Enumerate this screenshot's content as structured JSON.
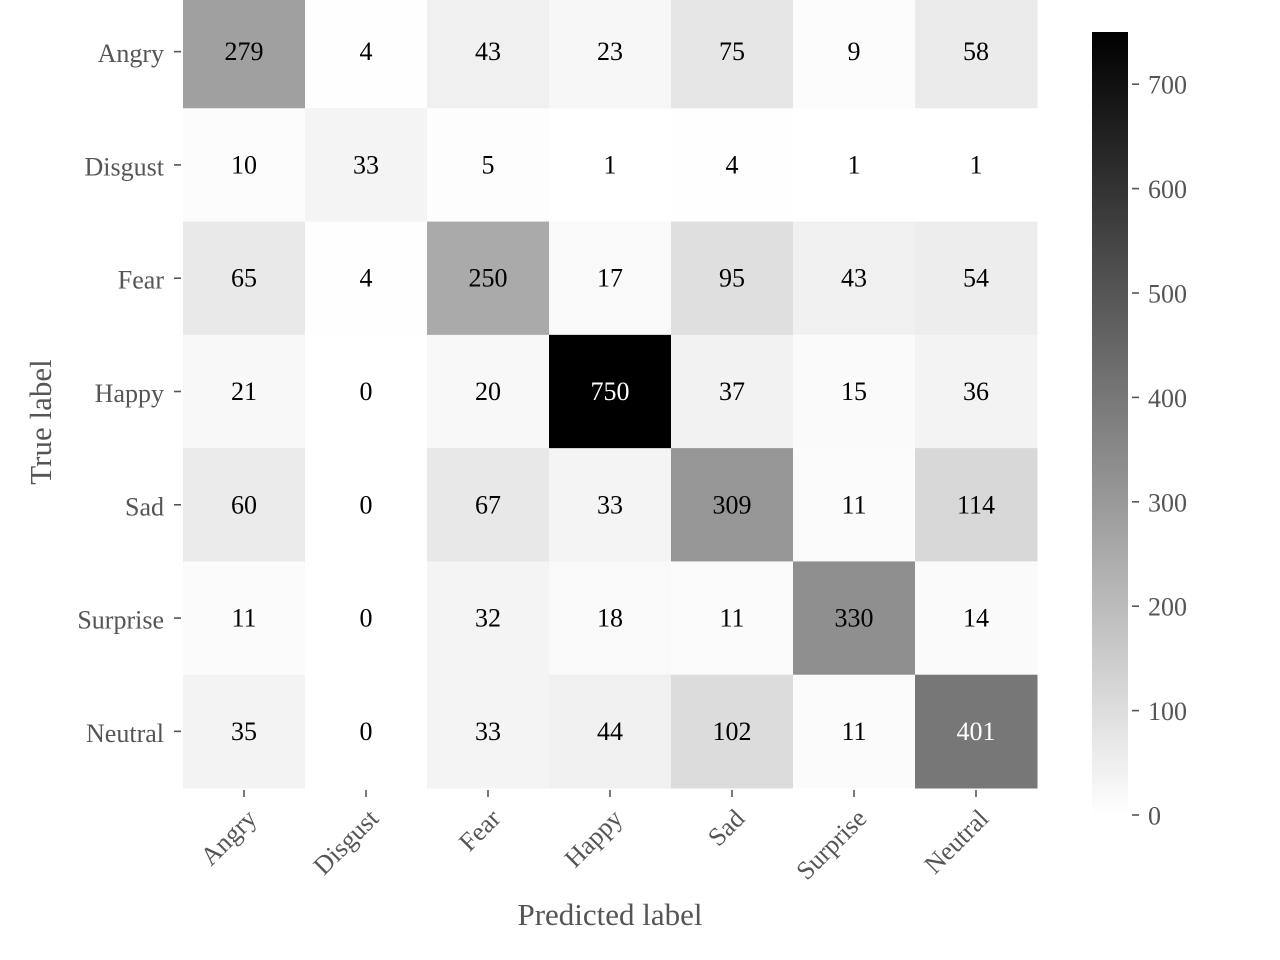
{
  "chart_data": {
    "type": "heatmap",
    "title": "",
    "xlabel": "Predicted label",
    "ylabel": "True label",
    "x_categories": [
      "Angry",
      "Disgust",
      "Fear",
      "Happy",
      "Sad",
      "Surprise",
      "Neutral"
    ],
    "y_categories": [
      "Angry",
      "Disgust",
      "Fear",
      "Happy",
      "Sad",
      "Surprise",
      "Neutral"
    ],
    "values": [
      [
        279,
        4,
        43,
        23,
        75,
        9,
        58
      ],
      [
        10,
        33,
        5,
        1,
        4,
        1,
        1
      ],
      [
        65,
        4,
        250,
        17,
        95,
        43,
        54
      ],
      [
        21,
        0,
        20,
        750,
        37,
        15,
        36
      ],
      [
        60,
        0,
        67,
        33,
        309,
        11,
        114
      ],
      [
        11,
        0,
        32,
        18,
        11,
        330,
        14
      ],
      [
        35,
        0,
        33,
        44,
        102,
        11,
        401
      ]
    ],
    "colormap": "Greys",
    "vmin": 0,
    "vmax": 750,
    "colorbar_ticks": [
      0,
      100,
      200,
      300,
      400,
      500,
      600,
      700
    ],
    "x_tick_rotation": 45,
    "text_color_dark": "#000000",
    "text_color_light": "#ffffff"
  }
}
